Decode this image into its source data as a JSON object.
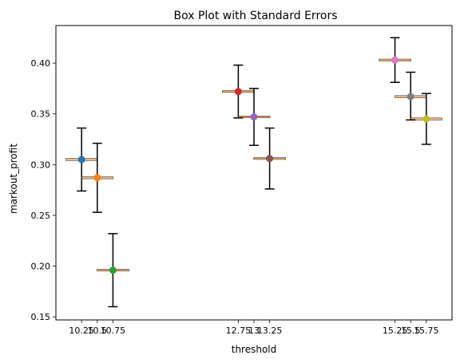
{
  "chart_data": {
    "type": "errorbar",
    "title": "Box Plot with Standard Errors",
    "xlabel": "threshold",
    "ylabel": "markout_profit",
    "x_tick_labels": [
      "10.25",
      "10.5",
      "10.75",
      "12.75",
      "13",
      "13.25",
      "15.25",
      "15.5",
      "15.75"
    ],
    "y_tick_labels": [
      "0.15",
      "0.20",
      "0.25",
      "0.30",
      "0.35",
      "0.40"
    ],
    "y_ticks": [
      0.15,
      0.2,
      0.25,
      0.3,
      0.35,
      0.4
    ],
    "xlim": [
      9.84,
      16.16
    ],
    "ylim": [
      0.147,
      0.437
    ],
    "grid": false,
    "points": [
      {
        "x": 10.25,
        "y": 0.305,
        "lower": 0.274,
        "upper": 0.336,
        "color": "#1f77b4"
      },
      {
        "x": 10.5,
        "y": 0.287,
        "lower": 0.253,
        "upper": 0.321,
        "color": "#ff7f0e"
      },
      {
        "x": 10.75,
        "y": 0.196,
        "lower": 0.16,
        "upper": 0.232,
        "color": "#2ca02c"
      },
      {
        "x": 12.75,
        "y": 0.372,
        "lower": 0.346,
        "upper": 0.398,
        "color": "#d62728"
      },
      {
        "x": 13,
        "y": 0.347,
        "lower": 0.319,
        "upper": 0.375,
        "color": "#9467bd"
      },
      {
        "x": 13.25,
        "y": 0.306,
        "lower": 0.276,
        "upper": 0.336,
        "color": "#8c564b"
      },
      {
        "x": 15.25,
        "y": 0.403,
        "lower": 0.381,
        "upper": 0.425,
        "color": "#e377c2"
      },
      {
        "x": 15.5,
        "y": 0.367,
        "lower": 0.344,
        "upper": 0.391,
        "color": "#7f7f7f"
      },
      {
        "x": 15.75,
        "y": 0.345,
        "lower": 0.32,
        "upper": 0.37,
        "color": "#bcbd22"
      }
    ],
    "median_line_color": "#ff7f0e"
  }
}
